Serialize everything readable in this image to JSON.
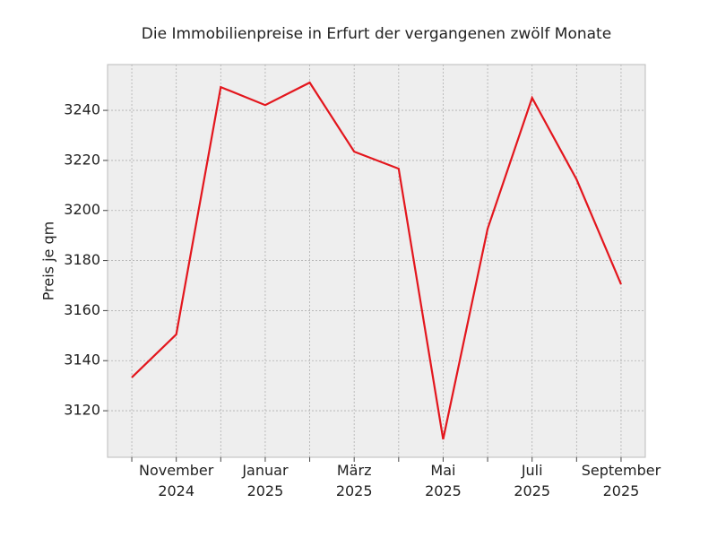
{
  "chart_data": {
    "type": "line",
    "title": "Die Immobilienpreise in Erfurt der vergangenen zwölf Monate",
    "y_label": "Preis je qm",
    "categories": [
      null,
      "November 2024",
      null,
      "Januar 2025",
      null,
      "März 2025",
      null,
      "Mai 2025",
      null,
      "Juli 2025",
      null,
      "September 2025"
    ],
    "values": [
      3133.3,
      3150.5,
      3249.3,
      3242.1,
      3251.1,
      3223.5,
      3216.7,
      3108.6,
      3192.7,
      3245.0,
      3212.4,
      3170.5
    ],
    "color": "#e3161d",
    "ylim": [
      3101.4,
      3258.3
    ],
    "yticks": [
      3120,
      3140,
      3160,
      3180,
      3200,
      3220,
      3240
    ],
    "grid": true
  }
}
